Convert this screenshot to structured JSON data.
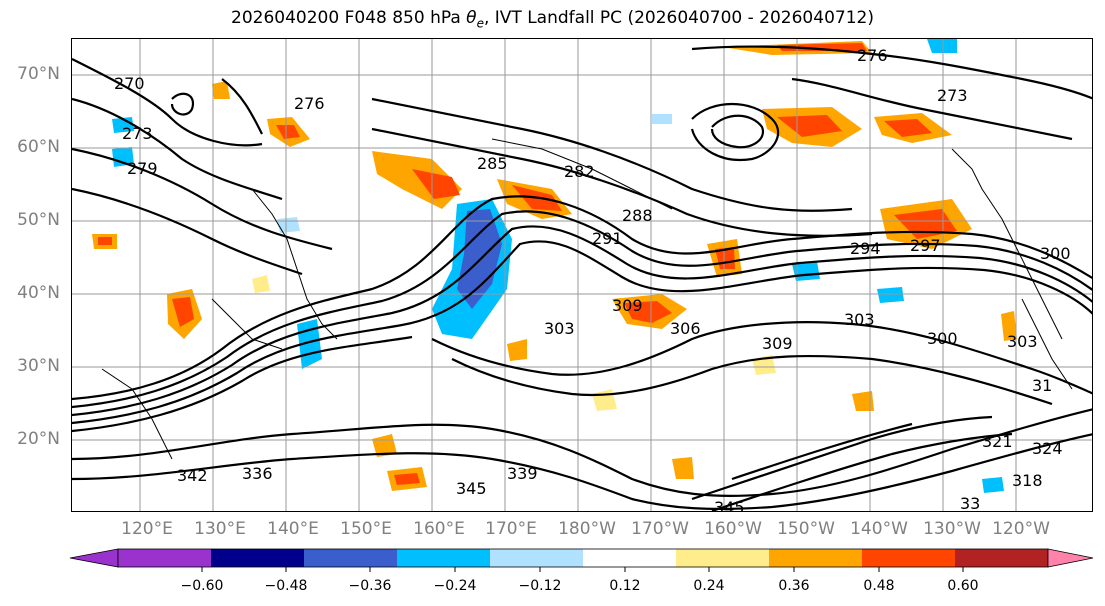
{
  "title": "2026040200 F048 850 hPa θe, IVT Landfall PC (2026040700 - 2026040712)",
  "title_parts": {
    "prefix": "2026040200 F048 850 hPa ",
    "symbol": "θ",
    "subscript": "e",
    "suffix": ", IVT Landfall PC (2026040700 - 2026040712)"
  },
  "lat_labels": [
    "70°N",
    "60°N",
    "50°N",
    "40°N",
    "30°N",
    "20°N"
  ],
  "lon_labels": [
    "120°E",
    "130°E",
    "140°E",
    "150°E",
    "160°E",
    "170°E",
    "180°W",
    "170°W",
    "160°W",
    "150°W",
    "140°W",
    "130°W",
    "120°W"
  ],
  "contour_labels": [
    "276",
    "273",
    "270",
    "276",
    "273",
    "279",
    "285",
    "282",
    "288",
    "291",
    "294",
    "297",
    "300",
    "303",
    "306",
    "309",
    "303",
    "300",
    "309",
    "321",
    "324",
    "318",
    "345",
    "339",
    "345",
    "342",
    "336",
    "33",
    "31",
    "303"
  ],
  "colorbar": {
    "ticks": [
      "−0.60",
      "−0.48",
      "−0.36",
      "−0.24",
      "−0.12",
      "0.12",
      "0.24",
      "0.36",
      "0.48",
      "0.60"
    ],
    "colors": [
      "#9a32cd",
      "#00008b",
      "#3a5fcd",
      "#00bfff",
      "#b0e2ff",
      "#ffffff",
      "#ffec8b",
      "#ffa500",
      "#ff4500",
      "#b22222",
      "#ff82ab",
      "#ff82ab"
    ]
  }
}
